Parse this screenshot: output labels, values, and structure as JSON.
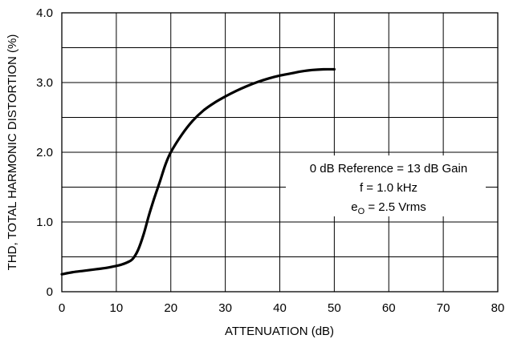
{
  "chart_data": {
    "type": "line",
    "xlabel": "ATTENUATION (dB)",
    "ylabel": "THD, TOTAL HARMONIC DISTORTION (%)",
    "xlim": [
      0,
      80
    ],
    "ylim": [
      0,
      4.0
    ],
    "x_ticks": [
      "0",
      "10",
      "20",
      "30",
      "40",
      "50",
      "60",
      "70",
      "80"
    ],
    "y_ticks": [
      "0",
      "1.0",
      "2.0",
      "3.0",
      "4.0"
    ],
    "grid": true,
    "annotations": {
      "line1": "0 dB Reference = 13 dB Gain",
      "line2": "f = 1.0 kHz",
      "line3_main": "e",
      "line3_sub": "O",
      "line3_rest": " = 2.5 Vrms"
    },
    "series": [
      {
        "x": [
          0,
          2,
          4,
          6,
          8,
          10,
          11,
          12,
          13,
          14,
          15,
          16,
          17,
          18,
          19,
          20,
          22,
          24,
          26,
          28,
          30,
          32,
          34,
          36,
          38,
          40,
          42,
          44,
          46,
          48,
          50
        ],
        "y": [
          0.25,
          0.28,
          0.3,
          0.32,
          0.34,
          0.37,
          0.39,
          0.42,
          0.47,
          0.6,
          0.82,
          1.1,
          1.35,
          1.58,
          1.82,
          2.0,
          2.25,
          2.45,
          2.6,
          2.71,
          2.8,
          2.88,
          2.95,
          3.01,
          3.06,
          3.1,
          3.13,
          3.16,
          3.18,
          3.19,
          3.19
        ]
      }
    ]
  }
}
